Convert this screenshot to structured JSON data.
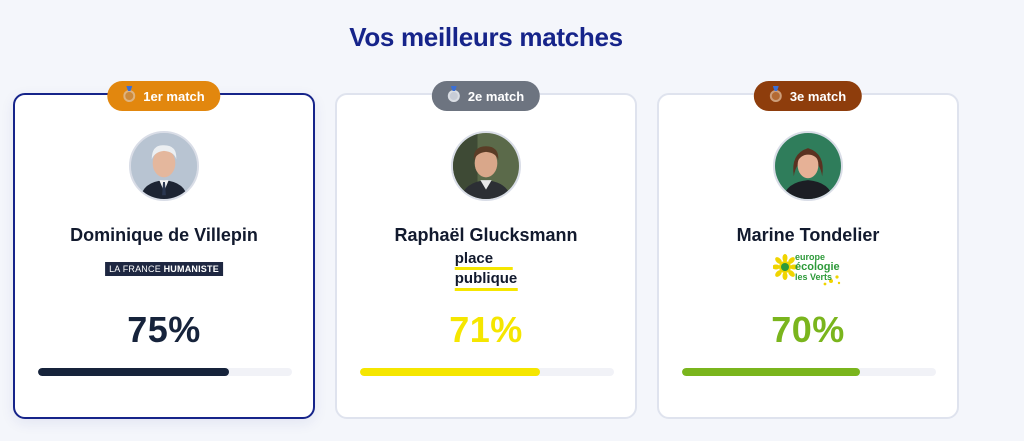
{
  "title": "Vos meilleurs matches",
  "matches": [
    {
      "rank_label": "1er match",
      "name": "Dominique de Villepin",
      "party_logo": {
        "light": "LA FRANCE ",
        "bold": "HUMANISTE"
      },
      "score_label": "75%",
      "score": 75,
      "color": "#16233b",
      "badge_color": "#e2870e",
      "medal": "medal-icon"
    },
    {
      "rank_label": "2e match",
      "name": "Raphaël Glucksmann",
      "party_logo": {
        "line1": "place",
        "line2": "publique"
      },
      "score_label": "71%",
      "score": 71,
      "color": "#f5e600",
      "badge_color": "#6d7480",
      "medal": "medal-icon"
    },
    {
      "rank_label": "3e match",
      "name": "Marine Tondelier",
      "party_logo": {
        "line1": "europe",
        "line2": "écologie",
        "line3": "les Verts"
      },
      "score_label": "70%",
      "score": 70,
      "color": "#7ab51d",
      "badge_color": "#8e3d0c",
      "medal": "medal-icon"
    }
  ]
}
